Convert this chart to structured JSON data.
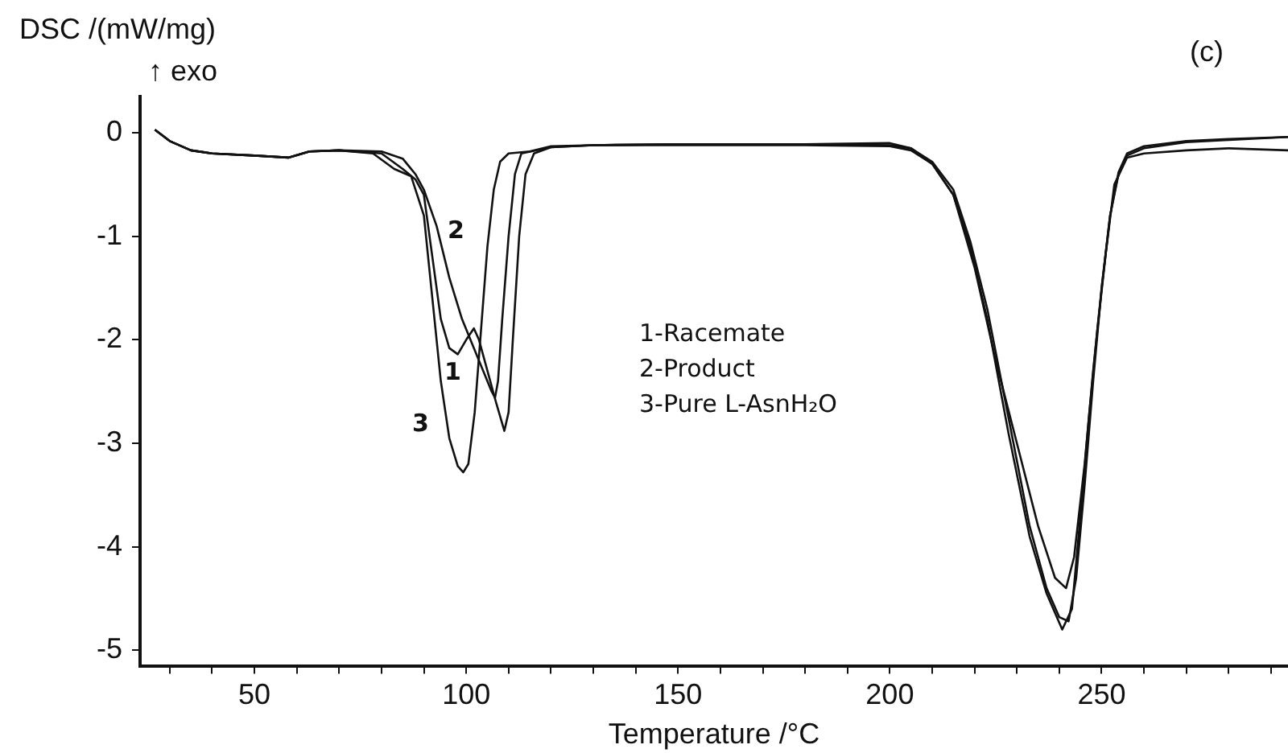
{
  "chart_data": {
    "type": "line",
    "title": "(c)",
    "xlabel": "Temperature /°C",
    "ylabel": "DSC /(mW/mg)",
    "xlim": [
      23,
      294
    ],
    "ylim": [
      -5.15,
      0.35
    ],
    "xticks": [
      {
        "value": 30,
        "label": null
      },
      {
        "value": 40,
        "label": null
      },
      50,
      {
        "value": 60,
        "label": null
      },
      {
        "value": 70,
        "label": null
      },
      {
        "value": 80,
        "label": null
      },
      {
        "value": 90,
        "label": null
      },
      100,
      {
        "value": 110,
        "label": null
      },
      {
        "value": 120,
        "label": null
      },
      {
        "value": 130,
        "label": null
      },
      {
        "value": 140,
        "label": null
      },
      150,
      {
        "value": 160,
        "label": null
      },
      {
        "value": 170,
        "label": null
      },
      {
        "value": 180,
        "label": null
      },
      {
        "value": 190,
        "label": null
      },
      200,
      {
        "value": 210,
        "label": null
      },
      {
        "value": 220,
        "label": null
      },
      {
        "value": 230,
        "label": null
      },
      {
        "value": 240,
        "label": null
      },
      250,
      {
        "value": 260,
        "label": null
      },
      {
        "value": 270,
        "label": null
      },
      {
        "value": 280,
        "label": null
      },
      {
        "value": 290,
        "label": null
      }
    ],
    "yticks": [
      -5,
      -4,
      -3,
      -2,
      -1,
      0
    ],
    "grid": false,
    "legend": false,
    "marker": "none",
    "line_style": "solid",
    "annotations": [
      "1",
      "2",
      "3",
      "↑ exo",
      "1-Racemate",
      "2-Product",
      "3-Pure L-AsnH₂O"
    ],
    "series": [
      {
        "color": "#111111",
        "x": [
          26.5,
          30,
          35,
          40,
          50,
          58,
          63,
          70,
          80,
          85,
          88,
          90,
          92,
          94,
          96,
          98,
          100,
          101.8,
          103,
          105,
          107,
          109,
          110,
          111,
          112.5,
          114,
          116,
          120,
          130,
          150,
          180,
          200,
          205,
          210,
          215,
          219,
          223,
          228,
          233,
          237,
          240,
          242.2,
          244,
          246,
          248,
          250,
          252,
          254,
          256,
          260,
          270,
          280,
          294
        ],
        "values": [
          0.03,
          -0.08,
          -0.17,
          -0.2,
          -0.22,
          -0.24,
          -0.18,
          -0.17,
          -0.2,
          -0.35,
          -0.45,
          -0.6,
          -1.2,
          -1.8,
          -2.08,
          -2.14,
          -2.0,
          -1.89,
          -2.0,
          -2.3,
          -2.6,
          -2.88,
          -2.7,
          -2.0,
          -1.0,
          -0.4,
          -0.2,
          -0.14,
          -0.12,
          -0.11,
          -0.11,
          -0.1,
          -0.15,
          -0.28,
          -0.55,
          -1.05,
          -1.7,
          -2.75,
          -3.8,
          -4.4,
          -4.68,
          -4.72,
          -4.3,
          -3.4,
          -2.4,
          -1.5,
          -0.8,
          -0.4,
          -0.22,
          -0.15,
          -0.09,
          -0.07,
          -0.04
        ]
      },
      {
        "color": "#111111",
        "x": [
          26.5,
          30,
          35,
          40,
          50,
          58,
          63,
          70,
          80,
          85,
          88,
          90,
          93,
          96,
          99,
          102,
          104,
          106,
          106.8,
          107.5,
          108.5,
          110,
          111.5,
          113,
          120,
          130,
          150,
          180,
          200,
          205,
          210,
          215,
          220,
          225,
          230,
          235,
          239,
          241.6,
          243.5,
          246,
          248,
          250,
          252,
          254,
          256,
          260,
          270,
          280,
          294
        ],
        "values": [
          0.03,
          -0.08,
          -0.17,
          -0.2,
          -0.22,
          -0.24,
          -0.18,
          -0.17,
          -0.18,
          -0.25,
          -0.4,
          -0.55,
          -0.9,
          -1.4,
          -1.8,
          -2.1,
          -2.3,
          -2.5,
          -2.56,
          -2.4,
          -1.8,
          -1.0,
          -0.4,
          -0.2,
          -0.14,
          -0.12,
          -0.11,
          -0.11,
          -0.12,
          -0.15,
          -0.3,
          -0.6,
          -1.3,
          -2.2,
          -3.0,
          -3.8,
          -4.3,
          -4.4,
          -4.1,
          -3.2,
          -2.3,
          -1.5,
          -0.8,
          -0.38,
          -0.2,
          -0.13,
          -0.08,
          -0.06,
          -0.04
        ]
      },
      {
        "color": "#111111",
        "x": [
          26.5,
          30,
          35,
          40,
          50,
          58,
          63,
          70,
          78,
          83,
          87,
          90,
          92,
          94,
          96,
          98,
          99.3,
          100.5,
          102,
          103.5,
          105,
          106.5,
          108,
          110,
          115,
          120,
          130,
          150,
          180,
          200,
          205,
          210,
          215,
          219,
          223,
          228,
          233,
          237,
          240.7,
          243,
          245,
          247,
          249,
          251,
          253,
          256,
          260,
          270,
          280,
          294
        ],
        "values": [
          0.03,
          -0.08,
          -0.17,
          -0.2,
          -0.22,
          -0.24,
          -0.18,
          -0.17,
          -0.2,
          -0.35,
          -0.42,
          -0.8,
          -1.6,
          -2.4,
          -2.95,
          -3.22,
          -3.28,
          -3.2,
          -2.7,
          -1.9,
          -1.1,
          -0.55,
          -0.28,
          -0.2,
          -0.18,
          -0.13,
          -0.12,
          -0.12,
          -0.12,
          -0.13,
          -0.17,
          -0.3,
          -0.6,
          -1.1,
          -1.8,
          -2.9,
          -3.9,
          -4.45,
          -4.8,
          -4.6,
          -3.7,
          -2.75,
          -1.9,
          -1.16,
          -0.5,
          -0.24,
          -0.2,
          -0.17,
          -0.15,
          -0.17
        ]
      }
    ]
  }
}
